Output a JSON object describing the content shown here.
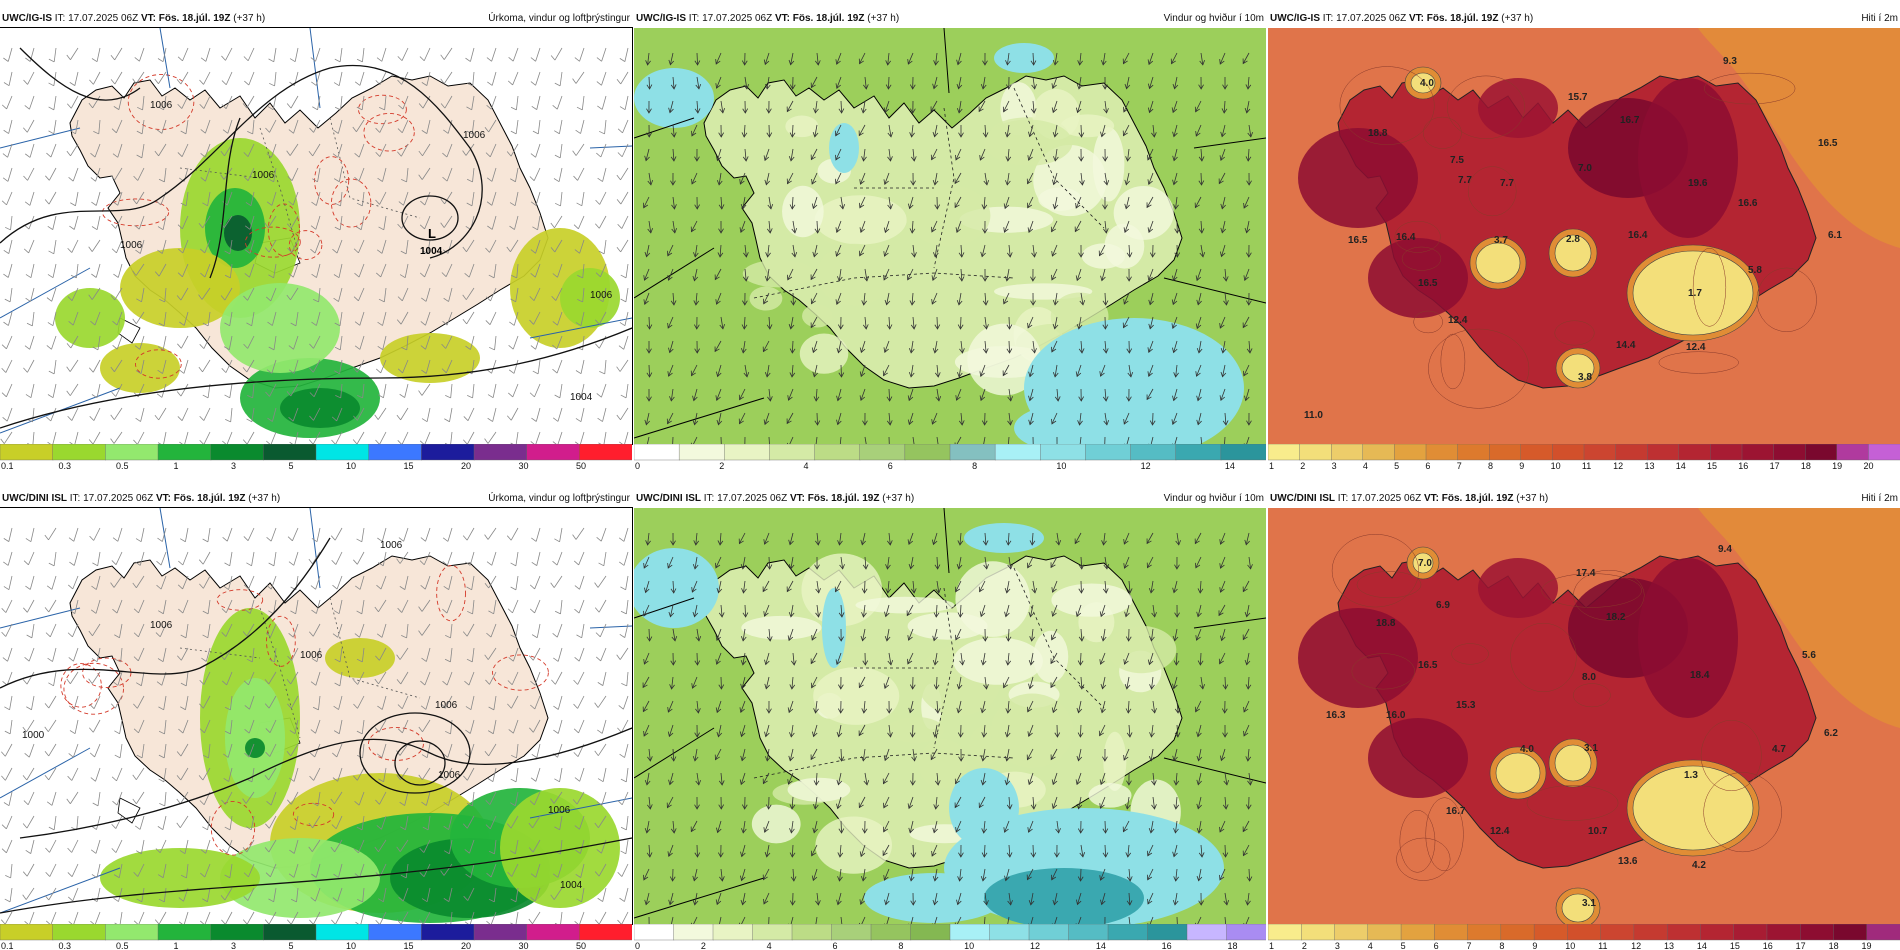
{
  "panels": [
    {
      "id": "p1",
      "kind": "precip",
      "model": "UWC/IG-IS",
      "it": "IT: 17.07.2025 06Z",
      "vt_label": "VT:",
      "vt": "Fös. 18.júl. 19Z",
      "lead": "(+37 h)",
      "title": "Úrkoma, vindur og loftþrýstingur",
      "low_label": "L",
      "low_value": "1004"
    },
    {
      "id": "p2",
      "kind": "wind",
      "model": "UWC/IG-IS",
      "it": "IT: 17.07.2025 06Z",
      "vt_label": "VT:",
      "vt": "Fös. 18.júl. 19Z",
      "lead": "(+37 h)",
      "title": "Vindur og hviður í 10m"
    },
    {
      "id": "p3",
      "kind": "temp",
      "model": "UWC/IG-IS",
      "it": "IT: 17.07.2025 06Z",
      "vt_label": "VT:",
      "vt": "Fös. 18.júl. 19Z",
      "lead": "(+37 h)",
      "title": "Hiti í 2m"
    },
    {
      "id": "p4",
      "kind": "precip",
      "model": "UWC/DINI ISL",
      "it": "IT: 17.07.2025 06Z",
      "vt_label": "VT:",
      "vt": "Fös. 18.júl. 19Z",
      "lead": "(+37 h)",
      "title": "Úrkoma, vindur og loftþrýstingur"
    },
    {
      "id": "p5",
      "kind": "wind",
      "model": "UWC/DINI ISL",
      "it": "IT: 17.07.2025 06Z",
      "vt_label": "VT:",
      "vt": "Fös. 18.júl. 19Z",
      "lead": "(+37 h)",
      "title": "Vindur og hviður í 10m"
    },
    {
      "id": "p6",
      "kind": "temp",
      "model": "UWC/DINI ISL",
      "it": "IT: 17.07.2025 06Z",
      "vt_label": "VT:",
      "vt": "Fös. 18.júl. 19Z",
      "lead": "(+37 h)",
      "title": "Hiti í 2m"
    }
  ],
  "colorbars": {
    "precip": {
      "labels": [
        "0.1",
        "0.3",
        "0.5",
        "1",
        "3",
        "5",
        "10",
        "15",
        "20",
        "30",
        "50"
      ],
      "colors": [
        "#c8cf28",
        "#9ad82f",
        "#93e86e",
        "#23b43c",
        "#0a8a2e",
        "#0a5a30",
        "#00e5e5",
        "#3c78ff",
        "#1c1c9c",
        "#7a2d8e",
        "#d11d8c",
        "#ff1e2d"
      ]
    },
    "wind_ig": {
      "labels": [
        "0",
        "2",
        "4",
        "6",
        "8",
        "10",
        "12",
        "14"
      ],
      "colors": [
        "#ffffff",
        "#f3f9dd",
        "#e8f4c4",
        "#d4eaa6",
        "#bcdc86",
        "#a8d07a",
        "#95c45f",
        "#84c0c0",
        "#a8f0f6",
        "#8ee0e6",
        "#70cfd6",
        "#55bcc4",
        "#3aa8b0",
        "#2b959c"
      ]
    },
    "wind_dini": {
      "labels": [
        "0",
        "2",
        "4",
        "6",
        "8",
        "10",
        "12",
        "14",
        "16",
        "18"
      ],
      "colors": [
        "#ffffff",
        "#f3f9dd",
        "#e8f4c4",
        "#d4eaa6",
        "#bcdc86",
        "#a8d07a",
        "#95c45f",
        "#84b852",
        "#a8f0f6",
        "#8ee0e6",
        "#70cfd6",
        "#55bcc4",
        "#3aa8b0",
        "#2b959c",
        "#c7b6ff",
        "#a98cf2"
      ]
    },
    "temp_ig": {
      "labels": [
        "1",
        "2",
        "3",
        "4",
        "5",
        "6",
        "7",
        "8",
        "9",
        "10",
        "11",
        "12",
        "13",
        "14",
        "15",
        "16",
        "17",
        "18",
        "19",
        "20"
      ],
      "colors": [
        "#f8ec8c",
        "#f3df7a",
        "#edcd6a",
        "#e6b955",
        "#e3a23f",
        "#e08d35",
        "#dd7a2d",
        "#d96a2a",
        "#d65a2a",
        "#d2502b",
        "#cc4530",
        "#c53a30",
        "#be3032",
        "#b42532",
        "#a81c33",
        "#9c1432",
        "#8d0d31",
        "#7a082e",
        "#b03a9e",
        "#c560d6"
      ]
    },
    "temp_dini": {
      "labels": [
        "1",
        "2",
        "3",
        "4",
        "5",
        "6",
        "7",
        "8",
        "9",
        "10",
        "11",
        "12",
        "13",
        "14",
        "15",
        "16",
        "17",
        "18",
        "19"
      ],
      "colors": [
        "#f8ec8c",
        "#f3df7a",
        "#edcd6a",
        "#e6b955",
        "#e3a23f",
        "#e08d35",
        "#dd7a2d",
        "#d96a2a",
        "#d65a2a",
        "#d2502b",
        "#cc4530",
        "#c53a30",
        "#be3032",
        "#b42532",
        "#a81c33",
        "#9c1432",
        "#8d0d31",
        "#7a082e",
        "#a02a7c"
      ]
    }
  },
  "temp_labels": {
    "p3": [
      "4.0",
      "9.3",
      "15.7",
      "16.7",
      "7.7",
      "18.8",
      "7.5",
      "7.7",
      "7.0",
      "19.6",
      "16.6",
      "16.5",
      "6.1",
      "16.5",
      "16.4",
      "3.7",
      "2.8",
      "16.4",
      "5.8",
      "16.5",
      "1.7",
      "12.4",
      "14.4",
      "12.4",
      "11.0",
      "3.8"
    ],
    "p6": [
      "7.0",
      "9.4",
      "17.4",
      "18.2",
      "6.9",
      "18.8",
      "16.5",
      "8.0",
      "18.4",
      "5.6",
      "15.3",
      "16.3",
      "16.0",
      "4.0",
      "3.1",
      "4.7",
      "6.2",
      "1.3",
      "16.7",
      "12.4",
      "10.7",
      "13.6",
      "4.2",
      "3.1"
    ]
  },
  "isobar_labels": {
    "p1": [
      "1006",
      "1006",
      "1006",
      "1006",
      "1006",
      "1004"
    ],
    "p4": [
      "1006",
      "1006",
      "1006",
      "1006",
      "1006",
      "1004",
      "1006",
      "1000"
    ]
  },
  "colors": {
    "land": "#f7e6d8",
    "sea_precip": "#ffffff",
    "wind_sea": "#9ccf5b",
    "temp_sea": "#e0744a",
    "contour_red": "#d43a2a",
    "isobar": "#111111",
    "graticule": "#2a63a8"
  }
}
